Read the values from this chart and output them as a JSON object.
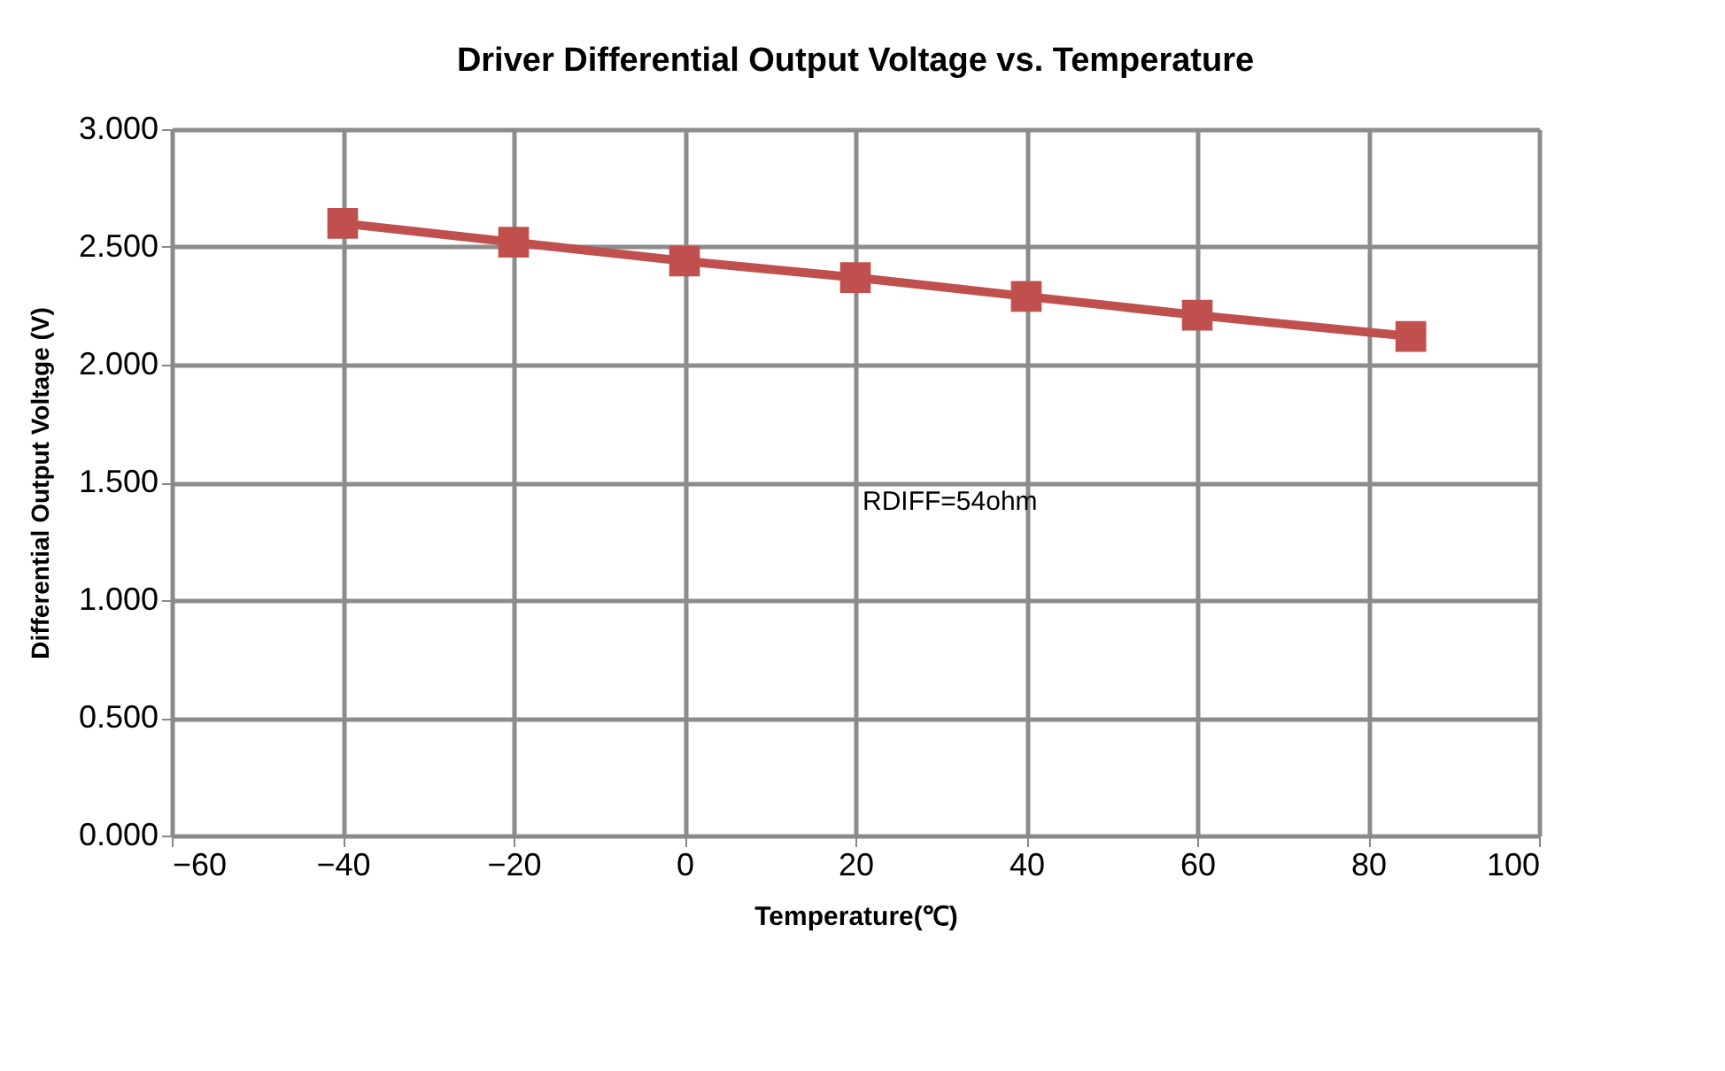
{
  "chart_data": {
    "type": "line",
    "title": "Driver Differential Output Voltage vs. Temperature",
    "xlabel": "Temperature(℃)",
    "ylabel": "Differential Output Voltage (V)",
    "x": [
      -40,
      -20,
      0,
      20,
      40,
      60,
      85
    ],
    "series": [
      {
        "color": "#c0504d",
        "values": [
          2.6,
          2.52,
          2.44,
          2.37,
          2.29,
          2.21,
          2.12
        ]
      }
    ],
    "xlim": [
      -60,
      100
    ],
    "xticks": [
      -60,
      -40,
      -20,
      0,
      20,
      40,
      60,
      80,
      100
    ],
    "ylim": [
      0,
      3
    ],
    "yticks": [
      {
        "value": 0,
        "label": "0.000"
      },
      {
        "value": 0.5,
        "label": "0.500"
      },
      {
        "value": 1,
        "label": "1.000"
      },
      {
        "value": 1.5,
        "label": "1.500"
      },
      {
        "value": 2,
        "label": "2.000"
      },
      {
        "value": 2.5,
        "label": "2.500"
      },
      {
        "value": 3,
        "label": "3.000"
      }
    ],
    "annotations": [
      "RDIFF=54ohm"
    ],
    "grid": true,
    "legend": false,
    "marker": "square",
    "line_style": "solid"
  }
}
